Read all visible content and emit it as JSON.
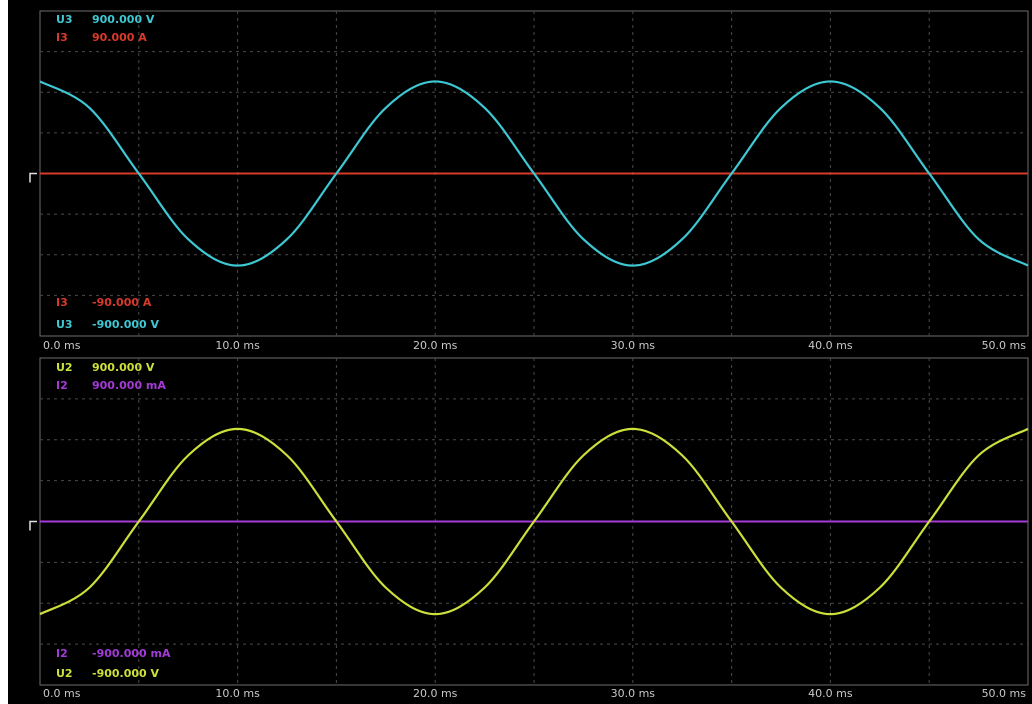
{
  "chart_data": [
    {
      "type": "line",
      "panel": "upper",
      "xlabel": "",
      "ylabel": "",
      "x_unit": "ms",
      "xlim": [
        0,
        50
      ],
      "x_ticks": [
        "0.0 ms",
        "10.0 ms",
        "20.0 ms",
        "30.0 ms",
        "40.0 ms",
        "50.0 ms"
      ],
      "grid": true,
      "channels": [
        {
          "name": "U3",
          "max_label": "900.000 V",
          "min_label": "-900.000 V",
          "color": "#3ec8d4"
        },
        {
          "name": "I3",
          "max_label": "90.000 A",
          "min_label": "-90.000 A",
          "color": "#d83a2a"
        }
      ],
      "series": [
        {
          "name": "U3",
          "unit": "V",
          "ylim": [
            -900,
            900
          ],
          "color": "#3ec8d4",
          "x": [
            0,
            2.5,
            5,
            7.5,
            10,
            12.5,
            15,
            17.5,
            20,
            22.5,
            25,
            27.5,
            30,
            32.5,
            35,
            37.5,
            40,
            42.5,
            45,
            47.5,
            50
          ],
          "values": [
            510,
            364,
            0,
            -364,
            -510,
            -364,
            0,
            364,
            510,
            364,
            0,
            -364,
            -510,
            -364,
            0,
            364,
            510,
            364,
            0,
            -364,
            -510
          ]
        },
        {
          "name": "I3",
          "unit": "A",
          "ylim": [
            -90,
            90
          ],
          "color": "#d83a2a",
          "x": [
            0,
            50
          ],
          "values": [
            0,
            0
          ]
        }
      ]
    },
    {
      "type": "line",
      "panel": "lower",
      "xlabel": "",
      "ylabel": "",
      "x_unit": "ms",
      "xlim": [
        0,
        50
      ],
      "x_ticks": [
        "0.0 ms",
        "10.0 ms",
        "20.0 ms",
        "30.0 ms",
        "40.0 ms",
        "50.0 ms"
      ],
      "grid": true,
      "channels": [
        {
          "name": "U2",
          "max_label": "900.000 V",
          "min_label": "-900.000 V",
          "color": "#cde03a"
        },
        {
          "name": "I2",
          "max_label": "900.000 mA",
          "min_label": "-900.000 mA",
          "color": "#a43ad8"
        }
      ],
      "series": [
        {
          "name": "U2",
          "unit": "V",
          "ylim": [
            -900,
            900
          ],
          "color": "#cde03a",
          "x": [
            0,
            2.5,
            5,
            7.5,
            10,
            12.5,
            15,
            17.5,
            20,
            22.5,
            25,
            27.5,
            30,
            32.5,
            35,
            37.5,
            40,
            42.5,
            45,
            47.5,
            50
          ],
          "values": [
            -510,
            -364,
            0,
            364,
            510,
            364,
            0,
            -364,
            -510,
            -364,
            0,
            364,
            510,
            364,
            0,
            -364,
            -510,
            -364,
            0,
            364,
            510
          ]
        },
        {
          "name": "I2",
          "unit": "mA",
          "ylim": [
            -900,
            900
          ],
          "color": "#a43ad8",
          "x": [
            0,
            50
          ],
          "values": [
            0,
            0
          ]
        }
      ]
    }
  ]
}
